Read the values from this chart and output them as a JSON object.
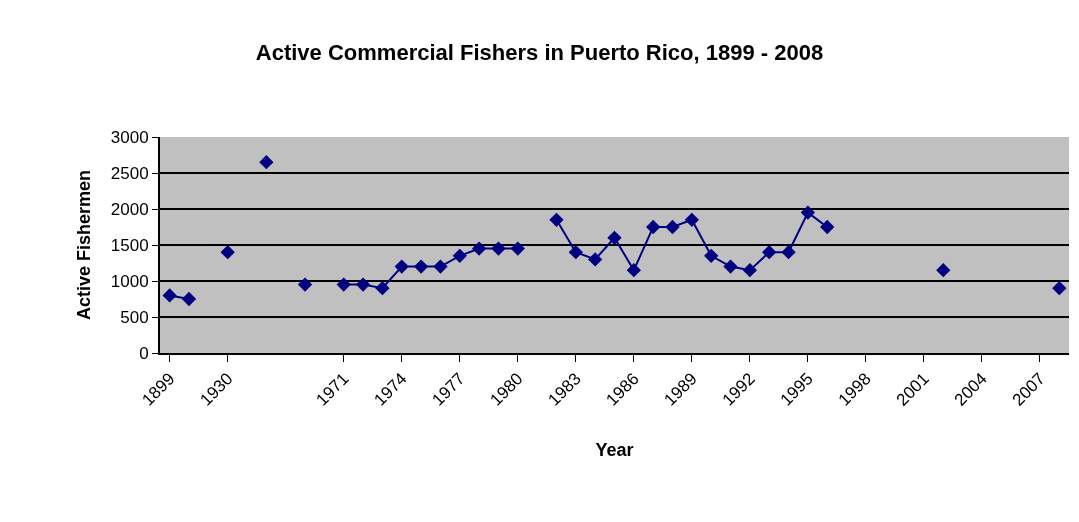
{
  "chart_data": {
    "type": "line",
    "title": "Active Commercial Fishers in Puerto Rico, 1899 - 2008",
    "xlabel": "Year",
    "ylabel": "Active Fishermen",
    "categories": [
      "1899",
      null,
      null,
      "1930",
      null,
      null,
      null,
      null,
      null,
      "1971",
      null,
      null,
      "1974",
      null,
      null,
      "1977",
      null,
      null,
      "1980",
      null,
      null,
      "1983",
      null,
      null,
      "1986",
      null,
      null,
      "1989",
      null,
      null,
      "1992",
      null,
      null,
      "1995",
      null,
      null,
      "1998",
      null,
      null,
      "2001",
      null,
      null,
      "2004",
      null,
      null,
      "2007",
      null
    ],
    "series": [
      {
        "color": "#000080",
        "values": [
          800,
          750,
          null,
          1400,
          null,
          2650,
          null,
          950,
          null,
          950,
          950,
          900,
          1200,
          1200,
          1200,
          1350,
          1450,
          1450,
          1450,
          null,
          1850,
          1400,
          1300,
          1600,
          1150,
          1750,
          1750,
          1850,
          1350,
          1200,
          1150,
          1400,
          1400,
          1950,
          1750,
          null,
          null,
          null,
          null,
          null,
          1150,
          null,
          null,
          null,
          null,
          null,
          900
        ]
      }
    ],
    "ylim": [
      0,
      3000
    ],
    "yticks": [
      0,
      500,
      1000,
      1500,
      2000,
      2500,
      3000
    ],
    "grid": "y",
    "marker": "diamond",
    "line_style": "solid"
  }
}
